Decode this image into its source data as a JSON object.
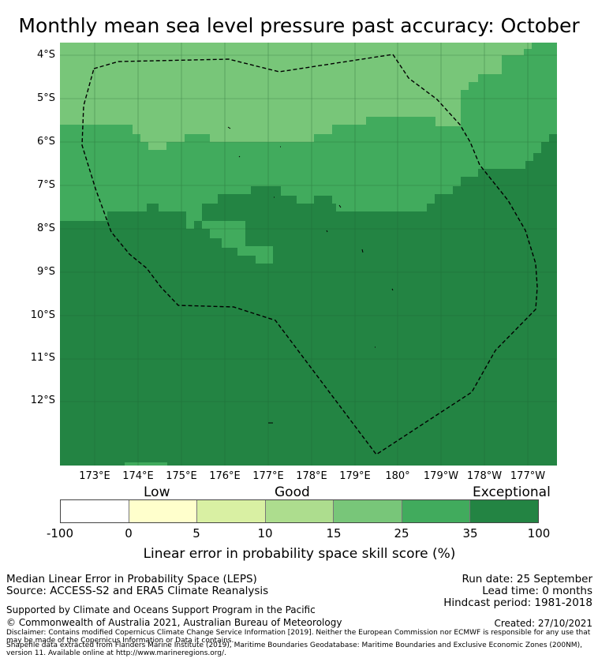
{
  "title": "Monthly mean sea level pressure past accuracy: October",
  "map": {
    "lat_labels": [
      "4°S",
      "5°S",
      "6°S",
      "7°S",
      "8°S",
      "9°S",
      "10°S",
      "11°S",
      "12°S"
    ],
    "lon_labels": [
      "173°E",
      "174°E",
      "175°E",
      "176°E",
      "177°E",
      "178°E",
      "179°E",
      "180°",
      "179°W",
      "178°W",
      "177°W"
    ],
    "colors": {
      "low_white": "#ffffff",
      "band_0_5": "#ffffcc",
      "band_5_10": "#d9f0a3",
      "band_10_15": "#addd8e",
      "band_15_25": "#78c679",
      "band_25_35": "#41ab5d",
      "band_35_100": "#238443"
    },
    "boundary": "Tuvalu Exclusive Economic Zone (dashed outline)"
  },
  "colorbar": {
    "category_labels": [
      "Low",
      "Good",
      "Exceptional"
    ],
    "ticks": [
      "-100",
      "0",
      "5",
      "10",
      "15",
      "25",
      "35",
      "100"
    ],
    "colors": [
      "#ffffff",
      "#ffffcc",
      "#d9f0a3",
      "#addd8e",
      "#78c679",
      "#41ab5d",
      "#238443"
    ],
    "title": "Linear error in probability space skill score (%)"
  },
  "footer": {
    "line1": "Median Linear Error in Probability Space (LEPS)",
    "line2": "Source: ACCESS-S2 and ERA5 Climate Reanalysis",
    "run_date": "Run date: 25 September",
    "lead_time": "Lead time: 0 months",
    "hindcast": "Hindcast period: 1981-2018",
    "supported": "Supported by Climate and Oceans Support Program in the Pacific",
    "copyright": "© Commonwealth of Australia 2021, Australian Bureau of Meteorology",
    "created": "Created: 27/10/2021",
    "disclaimer": "Disclaimer: Contains modified Copernicus Climate Change Service Information [2019]. Neither the European Commission nor ECMWF is responsible for any use that may be made of the Copernicus Information or Data it contains.",
    "shapefile": "Shapefile data extracted from Flanders Marine Institute (2019), Maritime Boundaries Geodatabase: Maritime Boundaries and Exclusive Economic Zones (200NM), version 11. Available online at http://www.marineregions.org/."
  }
}
